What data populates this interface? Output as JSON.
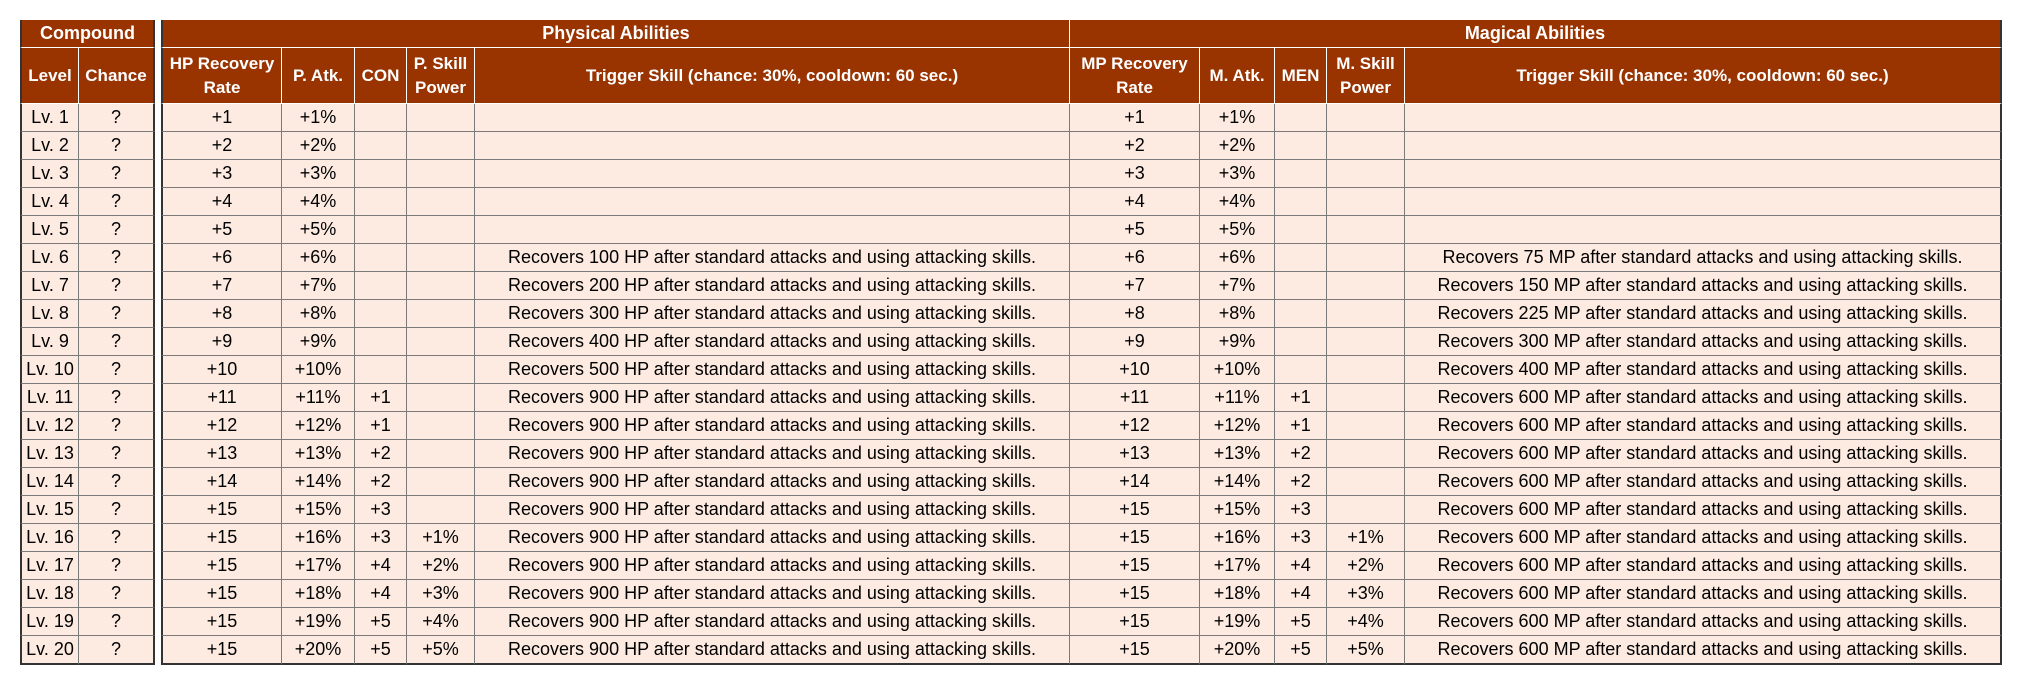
{
  "headers": {
    "compound": "Compound",
    "physical": "Physical Abilities",
    "magical": "Magical Abilities",
    "level": "Level",
    "chance": "Chance",
    "hp_recovery": "HP Recovery Rate",
    "p_atk": "P. Atk.",
    "con": "CON",
    "p_skill": "P. Skill Power",
    "p_trigger": "Trigger Skill (chance: 30%, cooldown: 60 sec.)",
    "mp_recovery": "MP Recovery Rate",
    "m_atk": "M. Atk.",
    "men": "MEN",
    "m_skill": "M. Skill Power",
    "m_trigger": "Trigger Skill (chance: 30%, cooldown: 60 sec.)"
  },
  "rows": [
    [
      "Lv. 1",
      "?",
      "+1",
      "+1%",
      "",
      "",
      "",
      "+1",
      "+1%",
      "",
      "",
      ""
    ],
    [
      "Lv. 2",
      "?",
      "+2",
      "+2%",
      "",
      "",
      "",
      "+2",
      "+2%",
      "",
      "",
      ""
    ],
    [
      "Lv. 3",
      "?",
      "+3",
      "+3%",
      "",
      "",
      "",
      "+3",
      "+3%",
      "",
      "",
      ""
    ],
    [
      "Lv. 4",
      "?",
      "+4",
      "+4%",
      "",
      "",
      "",
      "+4",
      "+4%",
      "",
      "",
      ""
    ],
    [
      "Lv. 5",
      "?",
      "+5",
      "+5%",
      "",
      "",
      "",
      "+5",
      "+5%",
      "",
      "",
      ""
    ],
    [
      "Lv. 6",
      "?",
      "+6",
      "+6%",
      "",
      "",
      "Recovers 100 HP after standard attacks and using attacking skills.",
      "+6",
      "+6%",
      "",
      "",
      "Recovers 75 MP after standard attacks and using attacking skills."
    ],
    [
      "Lv. 7",
      "?",
      "+7",
      "+7%",
      "",
      "",
      "Recovers 200 HP after standard attacks and using attacking skills.",
      "+7",
      "+7%",
      "",
      "",
      "Recovers 150 MP after standard attacks and using attacking skills."
    ],
    [
      "Lv. 8",
      "?",
      "+8",
      "+8%",
      "",
      "",
      "Recovers 300 HP after standard attacks and using attacking skills.",
      "+8",
      "+8%",
      "",
      "",
      "Recovers 225 MP after standard attacks and using attacking skills."
    ],
    [
      "Lv. 9",
      "?",
      "+9",
      "+9%",
      "",
      "",
      "Recovers 400 HP after standard attacks and using attacking skills.",
      "+9",
      "+9%",
      "",
      "",
      "Recovers 300 MP after standard attacks and using attacking skills."
    ],
    [
      "Lv. 10",
      "?",
      "+10",
      "+10%",
      "",
      "",
      "Recovers 500 HP after standard attacks and using attacking skills.",
      "+10",
      "+10%",
      "",
      "",
      "Recovers 400 MP after standard attacks and using attacking skills."
    ],
    [
      "Lv. 11",
      "?",
      "+11",
      "+11%",
      "+1",
      "",
      "Recovers 900 HP after standard attacks and using attacking skills.",
      "+11",
      "+11%",
      "+1",
      "",
      "Recovers 600 MP after standard attacks and using attacking skills."
    ],
    [
      "Lv. 12",
      "?",
      "+12",
      "+12%",
      "+1",
      "",
      "Recovers 900 HP after standard attacks and using attacking skills.",
      "+12",
      "+12%",
      "+1",
      "",
      "Recovers 600 MP after standard attacks and using attacking skills."
    ],
    [
      "Lv. 13",
      "?",
      "+13",
      "+13%",
      "+2",
      "",
      "Recovers 900 HP after standard attacks and using attacking skills.",
      "+13",
      "+13%",
      "+2",
      "",
      "Recovers 600 MP after standard attacks and using attacking skills."
    ],
    [
      "Lv. 14",
      "?",
      "+14",
      "+14%",
      "+2",
      "",
      "Recovers 900 HP after standard attacks and using attacking skills.",
      "+14",
      "+14%",
      "+2",
      "",
      "Recovers 600 MP after standard attacks and using attacking skills."
    ],
    [
      "Lv. 15",
      "?",
      "+15",
      "+15%",
      "+3",
      "",
      "Recovers 900 HP after standard attacks and using attacking skills.",
      "+15",
      "+15%",
      "+3",
      "",
      "Recovers 600 MP after standard attacks and using attacking skills."
    ],
    [
      "Lv. 16",
      "?",
      "+15",
      "+16%",
      "+3",
      "+1%",
      "Recovers 900 HP after standard attacks and using attacking skills.",
      "+15",
      "+16%",
      "+3",
      "+1%",
      "Recovers 600 MP after standard attacks and using attacking skills."
    ],
    [
      "Lv. 17",
      "?",
      "+15",
      "+17%",
      "+4",
      "+2%",
      "Recovers 900 HP after standard attacks and using attacking skills.",
      "+15",
      "+17%",
      "+4",
      "+2%",
      "Recovers 600 MP after standard attacks and using attacking skills."
    ],
    [
      "Lv. 18",
      "?",
      "+15",
      "+18%",
      "+4",
      "+3%",
      "Recovers 900 HP after standard attacks and using attacking skills.",
      "+15",
      "+18%",
      "+4",
      "+3%",
      "Recovers 600 MP after standard attacks and using attacking skills."
    ],
    [
      "Lv. 19",
      "?",
      "+15",
      "+19%",
      "+5",
      "+4%",
      "Recovers 900 HP after standard attacks and using attacking skills.",
      "+15",
      "+19%",
      "+5",
      "+4%",
      "Recovers 600 MP after standard attacks and using attacking skills."
    ],
    [
      "Lv. 20",
      "?",
      "+15",
      "+20%",
      "+5",
      "+5%",
      "Recovers 900 HP after standard attacks and using attacking skills.",
      "+15",
      "+20%",
      "+5",
      "+5%",
      "Recovers 600 MP after standard attacks and using attacking skills."
    ]
  ]
}
